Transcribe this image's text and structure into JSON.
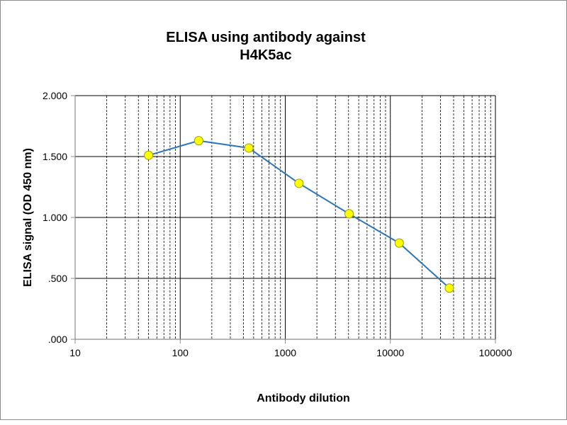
{
  "chart_data": {
    "type": "line",
    "title_lines": [
      "ELISA using antibody against",
      "H4K5ac"
    ],
    "xlabel": "Antibody dilution",
    "ylabel": "ELISA signal (OD 450 nm)",
    "x_scale": "log",
    "xlim": [
      10,
      100000
    ],
    "ylim": [
      0,
      2
    ],
    "x_ticks": [
      10,
      100,
      1000,
      10000,
      100000
    ],
    "x_tick_labels": [
      "10",
      "100",
      "1000",
      "10000",
      "100000"
    ],
    "y_ticks": [
      0,
      0.5,
      1,
      1.5,
      2
    ],
    "y_tick_labels": [
      ".000",
      ".500",
      "1.000",
      "1.500",
      "2.000"
    ],
    "grid": true,
    "legend": "none",
    "series": [
      {
        "x": [
          50,
          150,
          450,
          1350,
          4050,
          12150,
          36450
        ],
        "y": [
          1.51,
          1.63,
          1.57,
          1.28,
          1.03,
          0.79,
          0.42
        ],
        "line_color": "#2e75b6",
        "marker_fill": "#ffff00",
        "marker_stroke": "#9a9a00"
      }
    ]
  }
}
